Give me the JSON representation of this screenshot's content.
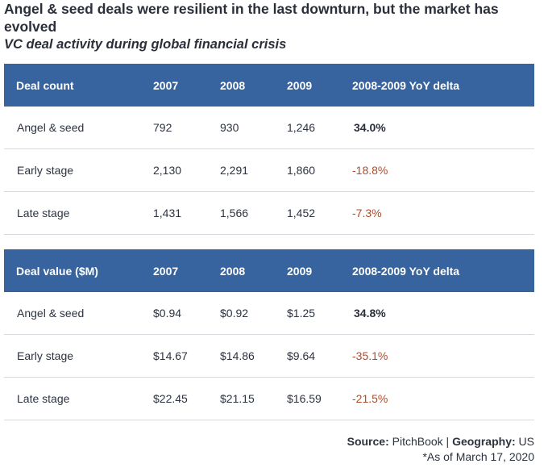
{
  "title": "Angel & seed deals were resilient in the last downturn, but the market has evolved",
  "subtitle": "VC deal activity during global financial crisis",
  "colors": {
    "header_bg": "#37649e",
    "header_text": "#ffffff",
    "negative": "#b34a28",
    "row_divider": "#d6d9de"
  },
  "chart_data": {
    "type": "table",
    "tables": [
      {
        "columns": [
          "Deal count",
          "2007",
          "2008",
          "2009",
          "2008-2009 YoY delta"
        ],
        "rows": [
          [
            "Angel & seed",
            "792",
            "930",
            "1,246",
            "34.0%"
          ],
          [
            "Early stage",
            "2,130",
            "2,291",
            "1,860",
            "-18.8%"
          ],
          [
            "Late stage",
            "1,431",
            "1,566",
            "1,452",
            "-7.3%"
          ]
        ]
      },
      {
        "columns": [
          "Deal value ($M)",
          "2007",
          "2008",
          "2009",
          "2008-2009 YoY delta"
        ],
        "rows": [
          [
            "Angel & seed",
            "$0.94",
            "$0.92",
            "$1.25",
            "34.8%"
          ],
          [
            "Early stage",
            "$14.67",
            "$14.86",
            "$9.64",
            "-35.1%"
          ],
          [
            "Late stage",
            "$22.45",
            "$21.15",
            "$16.59",
            "-21.5%"
          ]
        ]
      }
    ]
  },
  "footer": {
    "source_label": "Source:",
    "source_value": " PitchBook | ",
    "geography_label": "Geography:",
    "geography_value": " US",
    "as_of": "*As of March 17, 2020"
  }
}
